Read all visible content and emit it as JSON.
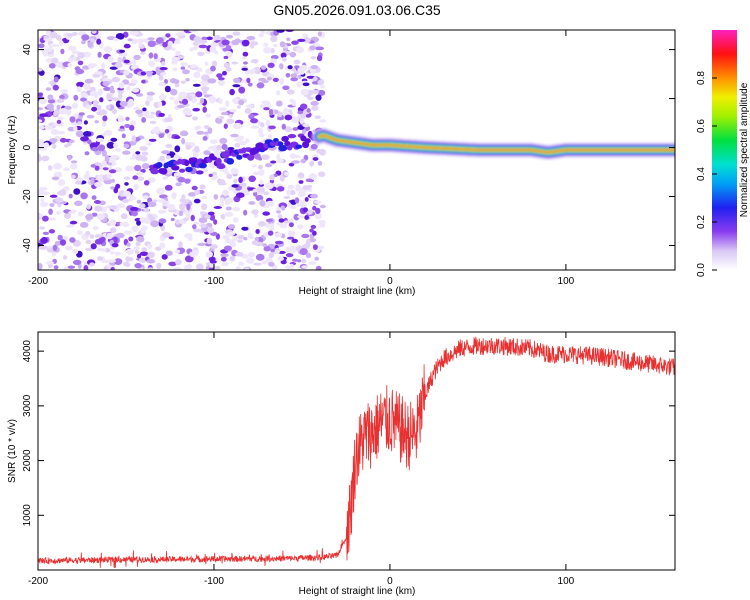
{
  "title": "GN05.2026.091.03.06.C35",
  "chart_data": [
    {
      "type": "heatmap",
      "xlabel": "Height of straight line (km)",
      "ylabel": "Frequency (Hz)",
      "xlim": [
        -200,
        162
      ],
      "ylim": [
        -50,
        48
      ],
      "xticks": [
        -200,
        -100,
        0,
        100
      ],
      "yticks": [
        -40,
        -20,
        0,
        20,
        40
      ],
      "noise_region_x": [
        -200,
        -38
      ],
      "ridge": [
        {
          "x": -130,
          "f": -8
        },
        {
          "x": -100,
          "f": -6
        },
        {
          "x": -80,
          "f": -2
        },
        {
          "x": -60,
          "f": 2
        },
        {
          "x": -45,
          "f": 3
        },
        {
          "x": -38,
          "f": 5
        },
        {
          "x": -30,
          "f": 3
        },
        {
          "x": -20,
          "f": 2
        },
        {
          "x": -10,
          "f": 1
        },
        {
          "x": 0,
          "f": 1
        },
        {
          "x": 20,
          "f": 0
        },
        {
          "x": 50,
          "f": -1
        },
        {
          "x": 80,
          "f": -1
        },
        {
          "x": 90,
          "f": -2
        },
        {
          "x": 100,
          "f": -1
        },
        {
          "x": 162,
          "f": -1
        }
      ],
      "colorbar": {
        "label": "Normalized spectral amplitude",
        "range": [
          0,
          1
        ],
        "ticks": [
          "0.0",
          "0.2",
          "0.4",
          "0.6",
          "0.8"
        ]
      }
    },
    {
      "type": "line",
      "xlabel": "Height of straight line (km)",
      "ylabel": "SNR (10 * v/v)",
      "xlim": [
        -200,
        162
      ],
      "ylim": [
        0,
        4350
      ],
      "xticks": [
        -200,
        -100,
        0,
        100
      ],
      "yticks": [
        1000,
        2000,
        3000,
        4000
      ],
      "color": "#e83030",
      "series": [
        {
          "x": [
            -200,
            -150,
            -100,
            -60,
            -40,
            -30,
            -25,
            -22,
            -20,
            -18,
            -15,
            -12,
            -10,
            -5,
            0,
            5,
            10,
            15,
            20,
            25,
            30,
            40,
            50,
            60,
            70,
            80,
            90,
            100,
            120,
            140,
            162
          ],
          "y": [
            170,
            190,
            200,
            210,
            230,
            260,
            600,
            1200,
            1900,
            2200,
            2400,
            2500,
            2500,
            2700,
            2750,
            2600,
            2450,
            2500,
            3200,
            3600,
            3850,
            4050,
            4100,
            4100,
            4080,
            4050,
            3950,
            3950,
            3900,
            3800,
            3700
          ]
        }
      ]
    }
  ]
}
